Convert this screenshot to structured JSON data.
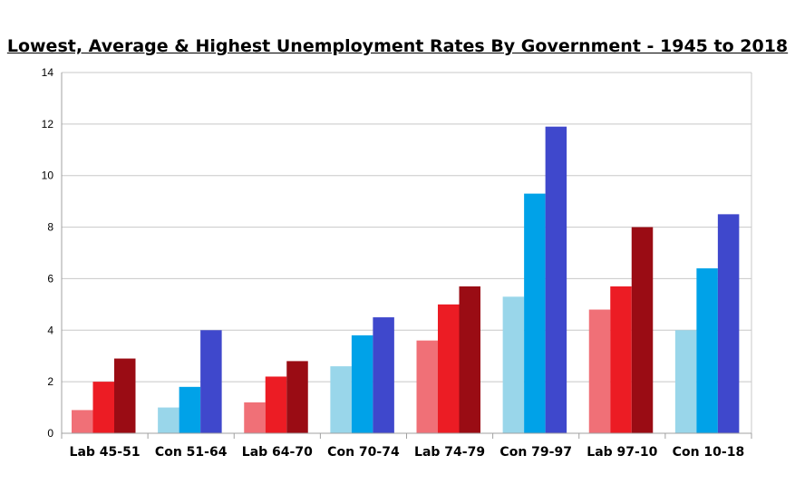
{
  "chart_data": {
    "type": "bar",
    "title": "Lowest, Average & Highest Unemployment Rates By Government - 1945 to 2018",
    "xlabel": "",
    "ylabel": "",
    "ylim": [
      0,
      14
    ],
    "yticks": [
      0,
      2,
      4,
      6,
      8,
      10,
      12,
      14
    ],
    "grid": true,
    "legend": "none",
    "categories": [
      "Lab 45-51",
      "Con 51-64",
      "Lab 64-70",
      "Con 70-74",
      "Lab 74-79",
      "Con 79-97",
      "Lab 97-10",
      "Con 10-18"
    ],
    "series": [
      {
        "name": "Lowest",
        "values": [
          0.9,
          1.0,
          1.2,
          2.6,
          3.6,
          5.3,
          4.8,
          4.0
        ]
      },
      {
        "name": "Average",
        "values": [
          2.0,
          1.8,
          2.2,
          3.8,
          5.0,
          9.3,
          5.7,
          6.4
        ]
      },
      {
        "name": "Highest",
        "values": [
          2.9,
          4.0,
          2.8,
          4.5,
          5.7,
          11.9,
          8.0,
          8.5
        ]
      }
    ],
    "colors": {
      "lab": [
        "#f07077",
        "#ec1c24",
        "#9a0c14"
      ],
      "con": [
        "#99d6ea",
        "#00a2e8",
        "#3f48cc"
      ],
      "category_party": [
        "lab",
        "con",
        "lab",
        "con",
        "lab",
        "con",
        "lab",
        "con"
      ],
      "grid": "#c8c8c8",
      "axis": "#a0a0a0"
    }
  }
}
